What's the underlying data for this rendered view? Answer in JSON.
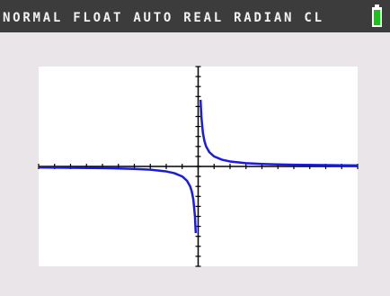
{
  "status_bar": "NORMAL FLOAT AUTO REAL RADIAN CL",
  "chart_data": {
    "type": "line",
    "x": [
      -10,
      -8,
      -6,
      -5,
      -4,
      -3,
      -2,
      -1.5,
      -1,
      -0.7,
      -0.5,
      -0.4,
      -0.3,
      -0.2,
      -0.15,
      0,
      0.15,
      0.2,
      0.3,
      0.4,
      0.5,
      0.7,
      1,
      1.5,
      2,
      3,
      4,
      5,
      6,
      8,
      10
    ],
    "values": [
      -0.1,
      -0.13,
      -0.17,
      -0.2,
      -0.25,
      -0.33,
      -0.5,
      -0.67,
      -1,
      -1.43,
      -2,
      -2.5,
      -3.33,
      -5,
      -6.67,
      null,
      6.67,
      5,
      3.33,
      2.5,
      2,
      1.43,
      1,
      0.67,
      0.5,
      0.33,
      0.25,
      0.2,
      0.17,
      0.13,
      0.1
    ],
    "color": "#1a1ae6",
    "xlim": [
      -10,
      10
    ],
    "ylim": [
      -10,
      10
    ],
    "xticks": [
      -10,
      -9,
      -8,
      -7,
      -6,
      -5,
      -4,
      -3,
      -2,
      -1,
      0,
      1,
      2,
      3,
      4,
      5,
      6,
      7,
      8,
      9,
      10
    ],
    "yticks": [
      -10,
      -9,
      -8,
      -7,
      -6,
      -5,
      -4,
      -3,
      -2,
      -1,
      0,
      1,
      2,
      3,
      4,
      5,
      6,
      7,
      8,
      9,
      10
    ],
    "grid": false
  }
}
